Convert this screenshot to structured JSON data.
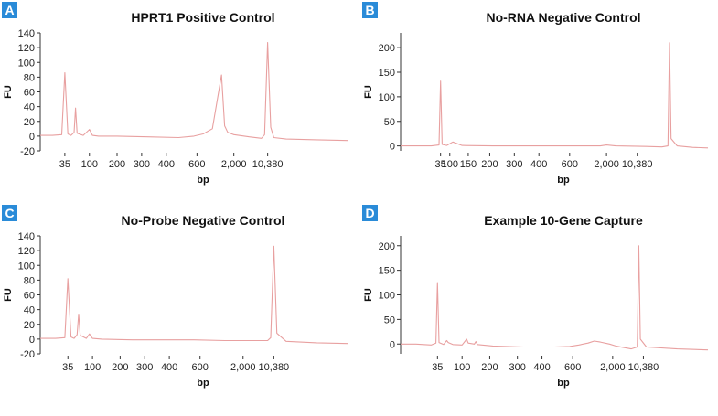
{
  "theme": {
    "badge_color": "#2a8bd8",
    "trace_color": "#e8a0a0",
    "axis_color": "#333333"
  },
  "chart_data": [
    {
      "type": "line",
      "badge": "A",
      "title": "HPRT1 Positive Control",
      "xlabel": "bp",
      "ylabel": "FU",
      "ylim": [
        -20,
        140
      ],
      "yticks": [
        -20,
        0,
        20,
        40,
        60,
        80,
        100,
        120,
        140
      ],
      "xticks": [
        {
          "label": "35",
          "pos": 0.08
        },
        {
          "label": "100",
          "pos": 0.16
        },
        {
          "label": "200",
          "pos": 0.25
        },
        {
          "label": "300",
          "pos": 0.33
        },
        {
          "label": "400",
          "pos": 0.41
        },
        {
          "label": "600",
          "pos": 0.51
        },
        {
          "label": "2,000",
          "pos": 0.63
        },
        {
          "label": "10,380",
          "pos": 0.74
        }
      ],
      "series": [
        {
          "x": [
            0,
            0.04,
            0.07,
            0.08,
            0.09,
            0.1,
            0.11,
            0.115,
            0.12,
            0.14,
            0.16,
            0.17,
            0.19,
            0.25,
            0.35,
            0.45,
            0.5,
            0.53,
            0.56,
            0.59,
            0.6,
            0.61,
            0.63,
            0.68,
            0.72,
            0.73,
            0.74,
            0.75,
            0.76,
            0.8,
            0.9,
            1.0
          ],
          "y": [
            1,
            1,
            2,
            86,
            3,
            1,
            5,
            38,
            4,
            1,
            9,
            1,
            0,
            0,
            -1,
            -2,
            0,
            3,
            10,
            83,
            14,
            5,
            2,
            -1,
            -3,
            2,
            127,
            12,
            -2,
            -4,
            -5,
            -6
          ]
        }
      ]
    },
    {
      "type": "line",
      "badge": "B",
      "title": "No-RNA Negative Control",
      "xlabel": "bp",
      "ylabel": "FU",
      "ylim": [
        -10,
        230
      ],
      "yticks": [
        0,
        50,
        100,
        150,
        200
      ],
      "xticks": [
        {
          "label": "35",
          "pos": 0.13
        },
        {
          "label": "100",
          "pos": 0.16
        },
        {
          "label": "150",
          "pos": 0.22
        },
        {
          "label": "200",
          "pos": 0.29
        },
        {
          "label": "300",
          "pos": 0.37
        },
        {
          "label": "400",
          "pos": 0.45
        },
        {
          "label": "600",
          "pos": 0.55
        },
        {
          "label": "2,000",
          "pos": 0.67
        },
        {
          "label": "10,380",
          "pos": 0.77
        }
      ],
      "series": [
        {
          "x": [
            0,
            0.1,
            0.125,
            0.13,
            0.135,
            0.15,
            0.17,
            0.2,
            0.3,
            0.4,
            0.5,
            0.6,
            0.65,
            0.67,
            0.7,
            0.8,
            0.85,
            0.87,
            0.875,
            0.88,
            0.9,
            0.95,
            1.0
          ],
          "y": [
            0,
            0,
            2,
            132,
            3,
            1,
            8,
            1,
            0,
            0,
            0,
            0,
            0,
            2,
            0,
            -1,
            -2,
            0,
            210,
            15,
            0,
            -3,
            -4
          ]
        }
      ]
    },
    {
      "type": "line",
      "badge": "C",
      "title": "No-Probe Negative Control",
      "xlabel": "bp",
      "ylabel": "FU",
      "ylim": [
        -20,
        140
      ],
      "yticks": [
        -20,
        0,
        20,
        40,
        60,
        80,
        100,
        120,
        140
      ],
      "xticks": [
        {
          "label": "35",
          "pos": 0.09
        },
        {
          "label": "100",
          "pos": 0.17
        },
        {
          "label": "200",
          "pos": 0.26
        },
        {
          "label": "300",
          "pos": 0.34
        },
        {
          "label": "400",
          "pos": 0.42
        },
        {
          "label": "600",
          "pos": 0.52
        },
        {
          "label": "2,000",
          "pos": 0.66
        },
        {
          "label": "10,380",
          "pos": 0.76
        }
      ],
      "series": [
        {
          "x": [
            0,
            0.05,
            0.08,
            0.09,
            0.1,
            0.11,
            0.12,
            0.125,
            0.13,
            0.15,
            0.16,
            0.17,
            0.2,
            0.3,
            0.4,
            0.5,
            0.6,
            0.7,
            0.74,
            0.75,
            0.76,
            0.77,
            0.8,
            0.9,
            1.0
          ],
          "y": [
            1,
            1,
            2,
            82,
            3,
            1,
            6,
            34,
            5,
            1,
            7,
            1,
            0,
            -1,
            -1,
            -1,
            -2,
            -2,
            -2,
            2,
            126,
            8,
            -3,
            -5,
            -6
          ]
        }
      ]
    },
    {
      "type": "line",
      "badge": "D",
      "title": "Example 10-Gene Capture",
      "xlabel": "bp",
      "ylabel": "FU",
      "ylim": [
        -20,
        220
      ],
      "yticks": [
        0,
        50,
        100,
        150,
        200
      ],
      "xticks": [
        {
          "label": "35",
          "pos": 0.12
        },
        {
          "label": "100",
          "pos": 0.2
        },
        {
          "label": "200",
          "pos": 0.29
        },
        {
          "label": "300",
          "pos": 0.38
        },
        {
          "label": "400",
          "pos": 0.46
        },
        {
          "label": "600",
          "pos": 0.56
        },
        {
          "label": "2,000",
          "pos": 0.69
        },
        {
          "label": "10,380",
          "pos": 0.79
        }
      ],
      "series": [
        {
          "x": [
            0,
            0.05,
            0.1,
            0.115,
            0.12,
            0.125,
            0.14,
            0.15,
            0.155,
            0.17,
            0.2,
            0.21,
            0.215,
            0.22,
            0.24,
            0.245,
            0.25,
            0.3,
            0.4,
            0.5,
            0.55,
            0.58,
            0.61,
            0.63,
            0.65,
            0.68,
            0.7,
            0.75,
            0.77,
            0.775,
            0.78,
            0.8,
            0.9,
            1.0
          ],
          "y": [
            0,
            0,
            -2,
            2,
            125,
            3,
            -1,
            7,
            3,
            -1,
            -2,
            6,
            10,
            2,
            0,
            5,
            -1,
            -4,
            -6,
            -6,
            -5,
            -2,
            2,
            6,
            4,
            0,
            -4,
            -10,
            -6,
            200,
            10,
            -6,
            -10,
            -12
          ]
        }
      ]
    }
  ]
}
